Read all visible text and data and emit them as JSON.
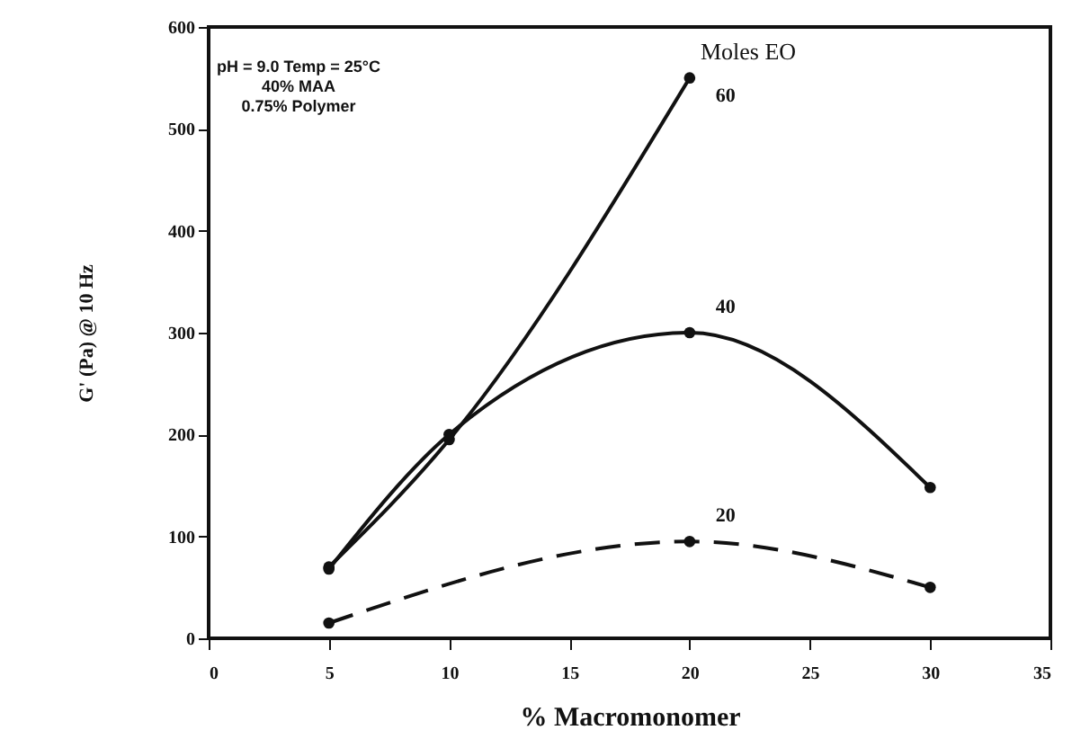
{
  "chart_data": {
    "type": "line",
    "xlabel": "% Macromonomer",
    "ylabel": "G' (Pa) @ 10 Hz",
    "legend_title": "Moles EO",
    "annotations": [
      "pH = 9.0 Temp = 25°C",
      "40% MAA",
      "0.75% Polymer"
    ],
    "xlim": [
      0,
      35
    ],
    "xticks": [
      0,
      5,
      10,
      15,
      20,
      25,
      30,
      35
    ],
    "ylim": [
      0,
      600
    ],
    "yticks": [
      0,
      100,
      200,
      300,
      400,
      500,
      600
    ],
    "marker": "circle",
    "grid": false,
    "series": [
      {
        "name": "60",
        "color": "#111111",
        "line_style": "solid",
        "x": [
          5,
          10,
          20
        ],
        "values": [
          70,
          195,
          550
        ]
      },
      {
        "name": "40",
        "color": "#111111",
        "line_style": "solid",
        "x": [
          5,
          10,
          20,
          30
        ],
        "values": [
          68,
          200,
          300,
          148
        ]
      },
      {
        "name": "20",
        "color": "#111111",
        "line_style": "dashed",
        "x": [
          5,
          20,
          30
        ],
        "values": [
          15,
          95,
          50
        ]
      }
    ]
  }
}
